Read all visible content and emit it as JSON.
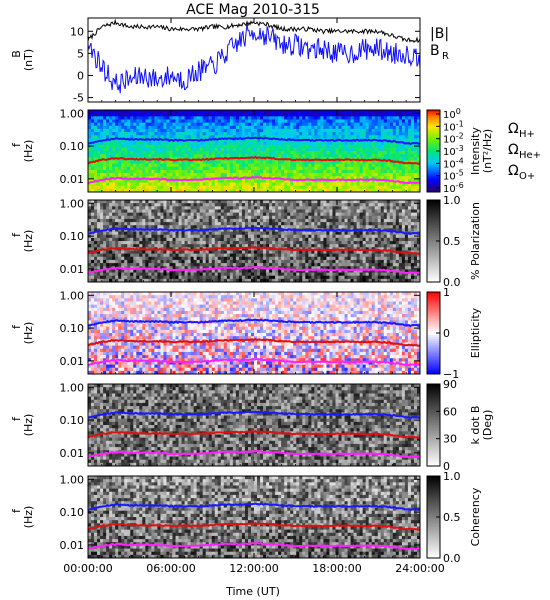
{
  "figure": {
    "title": "ACE Mag 2010-315",
    "xlabel": "Time (UT)",
    "xticks": [
      "00:00:00",
      "06:00:00",
      "12:00:00",
      "18:00:00",
      "24:00:00"
    ]
  },
  "colors": {
    "B_total": "#000000",
    "B_R": "#1010ff",
    "omega_H": "#1a1aff",
    "omega_He": "#e01010",
    "omega_O": "#ff22ff"
  },
  "chart_data": [
    {
      "type": "line",
      "id": "b-field",
      "ylabel": "B",
      "ylabel_unit": "(nT)",
      "ylim": [
        -6,
        13
      ],
      "yticks": [
        "-5",
        "0",
        "5",
        "10"
      ],
      "x_hours": [
        0,
        1,
        2,
        3,
        4,
        5,
        6,
        7,
        8,
        9,
        10,
        11,
        12,
        13,
        14,
        15,
        16,
        17,
        18,
        19,
        20,
        21,
        22,
        23,
        24
      ],
      "series": [
        {
          "name": "|B|",
          "values": [
            8,
            11,
            12,
            11,
            11,
            11,
            10.5,
            10.5,
            10.5,
            11,
            11,
            11.5,
            12,
            11.5,
            10.5,
            10.5,
            10.5,
            10,
            10,
            10,
            10,
            10,
            9,
            8,
            8
          ]
        },
        {
          "name": "B",
          "name_sub": "R",
          "values": [
            7,
            2,
            -2,
            -1,
            0,
            -1,
            0,
            -1,
            1,
            2,
            5,
            8,
            10,
            9,
            7,
            7,
            6,
            6,
            5,
            5,
            6,
            6,
            5,
            5,
            4
          ]
        }
      ],
      "legend": {
        "b_total": "|B|",
        "b_r_main": "B",
        "b_r_sub": "R"
      }
    },
    {
      "type": "heatmap",
      "id": "intensity",
      "ylabel": "f",
      "ylabel_unit": "(Hz)",
      "yticks": [
        "1.00",
        "0.10",
        "0.01"
      ],
      "colorbar": {
        "label": "Intensity",
        "unit": "(nT²/Hz)",
        "ticks": [
          {
            "base": "10",
            "exp": "0"
          },
          {
            "base": "10",
            "exp": "-1"
          },
          {
            "base": "10",
            "exp": "-2"
          },
          {
            "base": "10",
            "exp": "-3"
          },
          {
            "base": "10",
            "exp": "-4"
          },
          {
            "base": "10",
            "exp": "-5"
          },
          {
            "base": "10",
            "exp": "-6"
          }
        ]
      },
      "gyro_legend": [
        {
          "main": "Ω",
          "sub": "H+"
        },
        {
          "main": "Ω",
          "sub": "He+"
        },
        {
          "main": "Ω",
          "sub": "O+"
        }
      ]
    },
    {
      "type": "heatmap",
      "id": "polarization",
      "ylabel": "f",
      "ylabel_unit": "(Hz)",
      "yticks": [
        "1.00",
        "0.10",
        "0.01"
      ],
      "colorbar": {
        "label": "% Polarization",
        "ticks": [
          "1.0",
          "0.5",
          "0.0"
        ]
      }
    },
    {
      "type": "heatmap",
      "id": "ellipticity",
      "ylabel": "f",
      "ylabel_unit": "(Hz)",
      "yticks": [
        "1.00",
        "0.10",
        "0.01"
      ],
      "colorbar": {
        "label": "Ellipticity",
        "ticks": [
          "1",
          "0",
          "−1"
        ]
      }
    },
    {
      "type": "heatmap",
      "id": "kdotb",
      "ylabel": "f",
      "ylabel_unit": "(Hz)",
      "yticks": [
        "1.00",
        "0.10",
        "0.01"
      ],
      "colorbar": {
        "label": "k dot B",
        "unit": "(Deg)",
        "ticks": [
          "90",
          "60",
          "30",
          "0"
        ]
      }
    },
    {
      "type": "heatmap",
      "id": "coherency",
      "ylabel": "f",
      "ylabel_unit": "(Hz)",
      "yticks": [
        "1.00",
        "0.10",
        "0.01"
      ],
      "colorbar": {
        "label": "Coherency",
        "ticks": [
          "1.0",
          "0.5",
          "0.0"
        ]
      }
    }
  ],
  "gyrofrequency_lines": {
    "x_hours": [
      0,
      1,
      2,
      3,
      4,
      5,
      6,
      7,
      8,
      9,
      10,
      11,
      12,
      13,
      14,
      15,
      16,
      17,
      18,
      19,
      20,
      21,
      22,
      23,
      24
    ],
    "omega_H_hz": [
      0.12,
      0.15,
      0.17,
      0.16,
      0.16,
      0.16,
      0.15,
      0.15,
      0.15,
      0.16,
      0.17,
      0.17,
      0.18,
      0.17,
      0.16,
      0.15,
      0.15,
      0.15,
      0.15,
      0.15,
      0.15,
      0.15,
      0.14,
      0.12,
      0.12
    ],
    "omega_He_hz": [
      0.03,
      0.038,
      0.043,
      0.04,
      0.04,
      0.04,
      0.038,
      0.038,
      0.038,
      0.04,
      0.043,
      0.043,
      0.045,
      0.043,
      0.04,
      0.038,
      0.038,
      0.038,
      0.038,
      0.038,
      0.038,
      0.038,
      0.035,
      0.03,
      0.03
    ],
    "omega_O_hz": [
      0.0075,
      0.0094,
      0.0106,
      0.01,
      0.01,
      0.01,
      0.0094,
      0.0094,
      0.0094,
      0.01,
      0.0106,
      0.0106,
      0.0113,
      0.0106,
      0.01,
      0.0094,
      0.0094,
      0.0094,
      0.0094,
      0.0094,
      0.0094,
      0.0094,
      0.0088,
      0.0075,
      0.0075
    ]
  }
}
